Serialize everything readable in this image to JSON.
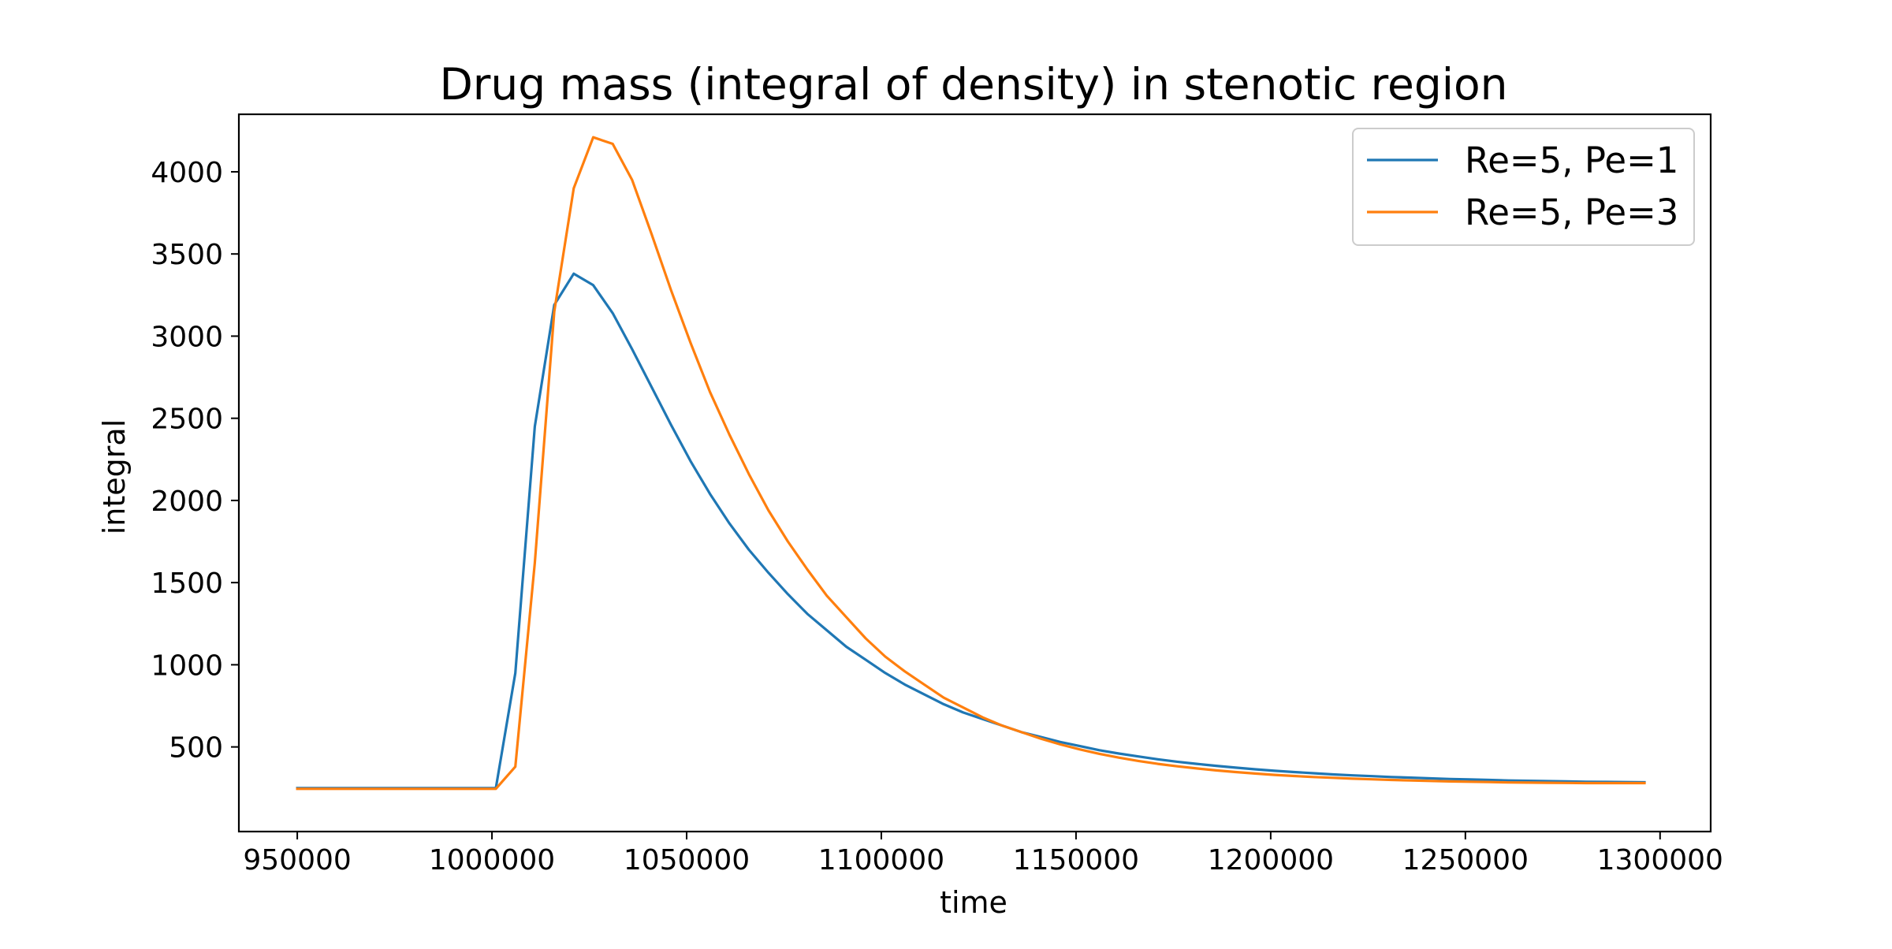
{
  "chart_data": {
    "type": "line",
    "title": "Drug mass (integral of density) in stenotic region",
    "xlabel": "time",
    "ylabel": "integral",
    "xlim": [
      935000,
      1313000
    ],
    "ylim": [
      -15,
      4350
    ],
    "xticks": [
      950000,
      1000000,
      1050000,
      1100000,
      1150000,
      1200000,
      1250000,
      1300000
    ],
    "yticks": [
      500,
      1000,
      1500,
      2000,
      2500,
      3000,
      3500,
      4000
    ],
    "xtick_labels": [
      "950000",
      "1000000",
      "1050000",
      "1100000",
      "1150000",
      "1200000",
      "1250000",
      "1300000"
    ],
    "ytick_labels": [
      "500",
      "1000",
      "1500",
      "2000",
      "2500",
      "3000",
      "3500",
      "4000"
    ],
    "grid": false,
    "legend_position": "upper right",
    "series": [
      {
        "name": "Re=5, Pe=1",
        "color": "#1f77b4",
        "x": [
          950000,
          1001000,
          1006000,
          1011000,
          1016000,
          1021000,
          1026000,
          1031000,
          1036000,
          1041000,
          1046000,
          1051000,
          1056000,
          1061000,
          1066000,
          1071000,
          1076000,
          1081000,
          1086000,
          1091000,
          1096000,
          1101000,
          1106000,
          1111000,
          1116000,
          1121000,
          1126000,
          1131000,
          1136000,
          1141000,
          1146000,
          1151000,
          1156000,
          1161000,
          1166000,
          1171000,
          1176000,
          1181000,
          1186000,
          1191000,
          1196000,
          1201000,
          1206000,
          1211000,
          1216000,
          1221000,
          1226000,
          1231000,
          1236000,
          1241000,
          1246000,
          1251000,
          1256000,
          1261000,
          1266000,
          1271000,
          1276000,
          1281000,
          1286000,
          1291000,
          1296000
        ],
        "y": [
          250,
          250,
          950,
          2450,
          3190,
          3380,
          3310,
          3140,
          2920,
          2690,
          2460,
          2240,
          2040,
          1860,
          1700,
          1560,
          1430,
          1310,
          1210,
          1110,
          1030,
          950,
          880,
          820,
          760,
          710,
          670,
          630,
          590,
          560,
          530,
          505,
          480,
          460,
          442,
          425,
          410,
          397,
          385,
          374,
          364,
          355,
          347,
          340,
          333,
          327,
          322,
          317,
          313,
          309,
          305,
          302,
          299,
          296,
          294,
          292,
          290,
          288,
          287,
          286,
          285
        ]
      },
      {
        "name": "Re=5, Pe=3",
        "color": "#ff7f0e",
        "x": [
          950000,
          1001000,
          1006000,
          1011000,
          1016000,
          1021000,
          1026000,
          1031000,
          1036000,
          1041000,
          1046000,
          1051000,
          1056000,
          1061000,
          1066000,
          1071000,
          1076000,
          1081000,
          1086000,
          1091000,
          1096000,
          1101000,
          1106000,
          1111000,
          1116000,
          1121000,
          1126000,
          1131000,
          1136000,
          1141000,
          1146000,
          1151000,
          1156000,
          1161000,
          1166000,
          1171000,
          1176000,
          1181000,
          1186000,
          1191000,
          1196000,
          1201000,
          1206000,
          1211000,
          1216000,
          1221000,
          1226000,
          1231000,
          1236000,
          1241000,
          1246000,
          1251000,
          1256000,
          1261000,
          1266000,
          1271000,
          1276000,
          1281000,
          1286000,
          1291000,
          1296000
        ],
        "y": [
          245,
          245,
          380,
          1620,
          3150,
          3900,
          4210,
          4170,
          3950,
          3620,
          3280,
          2960,
          2660,
          2400,
          2160,
          1940,
          1750,
          1580,
          1420,
          1290,
          1160,
          1050,
          960,
          880,
          800,
          740,
          680,
          630,
          590,
          550,
          515,
          485,
          458,
          435,
          415,
          397,
          382,
          369,
          357,
          347,
          338,
          330,
          323,
          317,
          312,
          307,
          303,
          299,
          296,
          293,
          290,
          288,
          286,
          284,
          283,
          282,
          281,
          280,
          280,
          280,
          280
        ]
      }
    ]
  }
}
